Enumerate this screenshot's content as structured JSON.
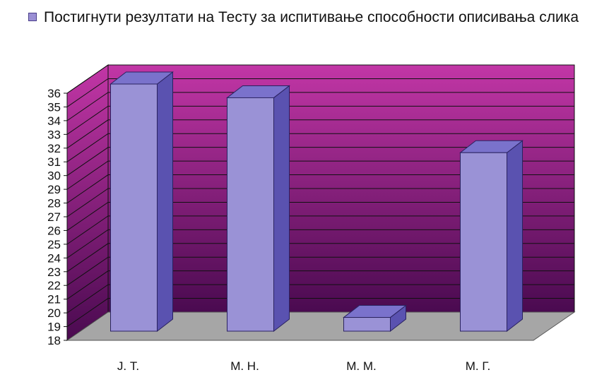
{
  "chart_data": {
    "type": "bar",
    "title": "",
    "xlabel": "",
    "ylabel": "",
    "categories": [
      "J. Т.",
      "М. Н.",
      "М. М.",
      "М. Г."
    ],
    "series": [
      {
        "name": "Постигнути резултати на Тесту за испитивање способности описивања слика",
        "values": [
          36,
          35,
          19,
          31
        ]
      }
    ],
    "ylim": [
      18,
      36
    ],
    "yticks": [
      18,
      19,
      20,
      21,
      22,
      23,
      24,
      25,
      26,
      27,
      28,
      29,
      30,
      31,
      32,
      33,
      34,
      35,
      36
    ],
    "grid": true,
    "legend_position": "top-left",
    "projection": "3d",
    "colors": {
      "bar_front": "#9a92d6",
      "bar_side": "#5a52b0",
      "bar_top": "#7a72cc",
      "bar_edge": "#2a2260",
      "wall_top": "#c236a6",
      "wall_bottom": "#4a0a50",
      "floor": "#a6a6a6",
      "grid": "#111111"
    }
  }
}
